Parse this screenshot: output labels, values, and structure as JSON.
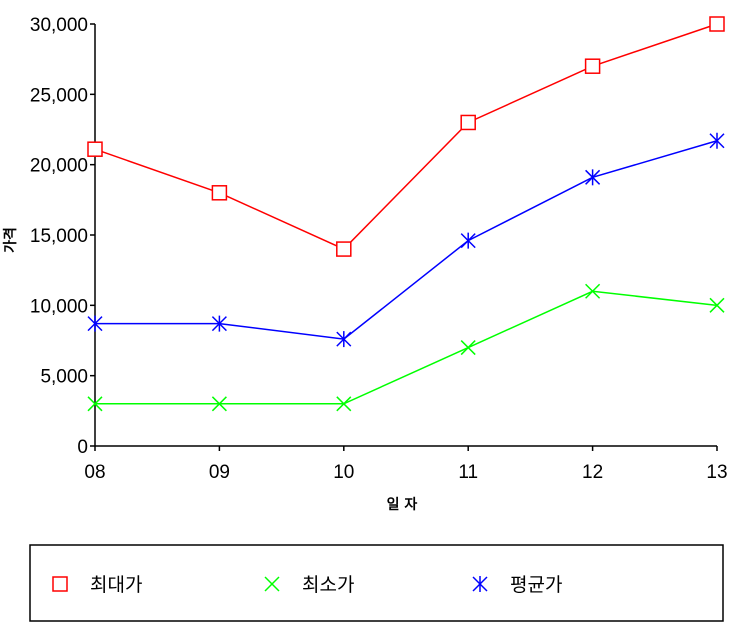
{
  "chart_data": {
    "type": "line",
    "title": "",
    "xlabel": "일 자",
    "ylabel": "가격",
    "categories": [
      "08",
      "09",
      "10",
      "11",
      "12",
      "13"
    ],
    "ylim": [
      0,
      30000
    ],
    "yticks": [
      0,
      5000,
      10000,
      15000,
      20000,
      25000,
      30000
    ],
    "ytick_labels": [
      "0",
      "5,000",
      "10,000",
      "15,000",
      "20,000",
      "25,000",
      "30,000"
    ],
    "grid": false,
    "legend_position": "bottom",
    "series": [
      {
        "name": "최대가",
        "marker": "square",
        "color": "#ff0000",
        "values": [
          21100,
          18000,
          14000,
          23000,
          27000,
          30000
        ]
      },
      {
        "name": "최소가",
        "marker": "x",
        "color": "#00ff00",
        "values": [
          3000,
          3000,
          3000,
          7000,
          11000,
          10000
        ]
      },
      {
        "name": "평균가",
        "marker": "asterisk",
        "color": "#0000ff",
        "values": [
          8700,
          8700,
          7600,
          14600,
          19100,
          21700
        ]
      }
    ]
  }
}
